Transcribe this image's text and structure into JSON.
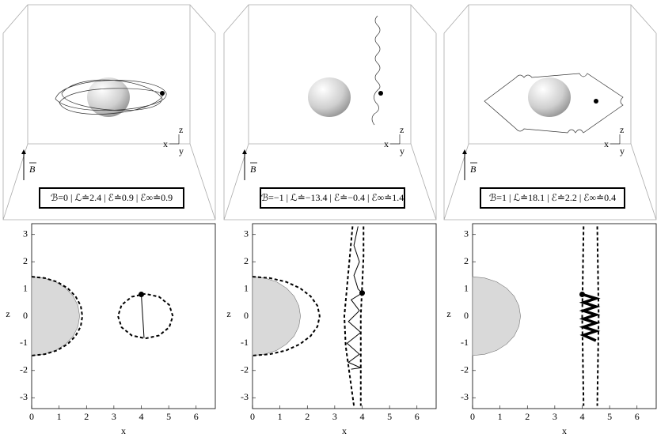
{
  "scenes": [
    {
      "axes": [
        "x",
        "y",
        "z"
      ],
      "field": "B",
      "label": "ℬ=0 | ℒ≐2.4 | ℰ≐0.9 | ℰ∞≐0.9"
    },
    {
      "axes": [
        "x",
        "y",
        "z"
      ],
      "field": "B",
      "label": "ℬ=−1 | ℒ≐−13.4 | ℰ≐−0.4 | ℰ∞≐1.4"
    },
    {
      "axes": [
        "x",
        "y",
        "z"
      ],
      "field": "B",
      "label": "ℬ=1 | ℒ≐18.1 | ℰ≐2.2 | ℰ∞≐0.4"
    }
  ],
  "chart_data": [
    {
      "type": "line",
      "xlabel": "x",
      "ylabel": "z",
      "xlim": [
        0,
        6.7
      ],
      "ylim": [
        -3.4,
        3.4
      ],
      "xticks": [
        0,
        1,
        2,
        3,
        4,
        5,
        6
      ],
      "yticks": [
        -3,
        -2,
        -1,
        0,
        1,
        2,
        3
      ],
      "series": [
        {
          "style": "filled",
          "color": "#d9d9d9",
          "x": [
            0,
            0.45,
            0.88,
            1.24,
            1.52,
            1.69,
            1.75,
            1.69,
            1.52,
            1.24,
            0.88,
            0.45,
            0
          ],
          "values": [
            1.45,
            1.4,
            1.26,
            1.03,
            0.73,
            0.38,
            0,
            -0.38,
            -0.73,
            -1.03,
            -1.26,
            -1.4,
            -1.45
          ]
        },
        {
          "style": "dashed",
          "color": "#000000",
          "x": [
            0,
            0.48,
            0.93,
            1.31,
            1.6,
            1.79,
            1.85,
            1.79,
            1.6,
            1.31,
            0.93,
            0.48,
            0
          ],
          "values": [
            1.45,
            1.4,
            1.26,
            1.03,
            0.73,
            0.38,
            0,
            -0.38,
            -0.73,
            -1.03,
            -1.26,
            -1.4,
            -1.45
          ]
        },
        {
          "style": "dashed",
          "color": "#000000",
          "x": [
            5.15,
            5.02,
            4.65,
            4.15,
            3.65,
            3.28,
            3.15,
            3.28,
            3.65,
            4.15,
            4.65,
            5.02,
            5.15
          ],
          "values": [
            0,
            0.41,
            0.71,
            0.82,
            0.71,
            0.41,
            0,
            -0.41,
            -0.71,
            -0.82,
            -0.71,
            -0.41,
            0
          ]
        },
        {
          "style": "solid",
          "color": "#000000",
          "x": [
            4.0,
            4.03,
            4.07,
            4.1
          ],
          "values": [
            0.8,
            0.3,
            -0.3,
            -0.8
          ]
        },
        {
          "style": "points",
          "color": "#000000",
          "x": [
            4.0
          ],
          "values": [
            0.8
          ]
        }
      ]
    },
    {
      "type": "line",
      "xlabel": "x",
      "ylabel": "z",
      "xlim": [
        0,
        6.7
      ],
      "ylim": [
        -3.4,
        3.4
      ],
      "xticks": [
        0,
        1,
        2,
        3,
        4,
        5,
        6
      ],
      "yticks": [
        -3,
        -2,
        -1,
        0,
        1,
        2,
        3
      ],
      "series": [
        {
          "style": "filled",
          "color": "#d9d9d9",
          "x": [
            0,
            0.45,
            0.88,
            1.24,
            1.52,
            1.69,
            1.75,
            1.69,
            1.52,
            1.24,
            0.88,
            0.45,
            0
          ],
          "values": [
            1.45,
            1.4,
            1.26,
            1.03,
            0.73,
            0.38,
            0,
            -0.38,
            -0.73,
            -1.03,
            -1.26,
            -1.4,
            -1.45
          ]
        },
        {
          "style": "dashed",
          "color": "#000000",
          "x": [
            0,
            0.63,
            1.23,
            1.73,
            2.12,
            2.37,
            2.45,
            2.37,
            2.12,
            1.73,
            1.23,
            0.63,
            0
          ],
          "values": [
            1.45,
            1.4,
            1.26,
            1.03,
            0.73,
            0.38,
            0,
            -0.38,
            -0.73,
            -1.03,
            -1.26,
            -1.4,
            -1.45
          ]
        },
        {
          "style": "dashed",
          "color": "#000000",
          "x": [
            3.65,
            3.55,
            3.45,
            3.35,
            3.4,
            3.55,
            3.7
          ],
          "values": [
            3.3,
            2.2,
            1.1,
            0,
            -1.1,
            -2.2,
            -3.3
          ]
        },
        {
          "style": "dashed",
          "color": "#000000",
          "x": [
            4.05,
            4.05,
            4.0,
            3.95,
            3.95,
            3.95,
            3.95
          ],
          "values": [
            3.3,
            2.2,
            1.1,
            0,
            -1.1,
            -2.2,
            -3.3
          ]
        },
        {
          "style": "solid",
          "color": "#000000",
          "x": [
            3.85,
            3.7,
            3.9,
            3.7,
            3.85,
            4.0,
            3.6,
            3.9,
            3.5,
            3.95,
            3.45,
            3.9,
            3.5,
            3.95,
            3.6
          ],
          "values": [
            3.3,
            2.6,
            2.0,
            1.5,
            1.0,
            0.85,
            0.6,
            0.2,
            -0.2,
            -0.6,
            -1.0,
            -1.4,
            -1.7,
            -1.9,
            -1.95
          ]
        },
        {
          "style": "points",
          "color": "#000000",
          "x": [
            4.0
          ],
          "values": [
            0.85
          ]
        }
      ]
    },
    {
      "type": "line",
      "xlabel": "x",
      "ylabel": "z",
      "xlim": [
        0,
        6.7
      ],
      "ylim": [
        -3.4,
        3.4
      ],
      "xticks": [
        0,
        1,
        2,
        3,
        4,
        5,
        6
      ],
      "yticks": [
        -3,
        -2,
        -1,
        0,
        1,
        2,
        3
      ],
      "series": [
        {
          "style": "filled",
          "color": "#d9d9d9",
          "x": [
            0,
            0.45,
            0.88,
            1.24,
            1.52,
            1.69,
            1.75,
            1.69,
            1.52,
            1.24,
            0.88,
            0.45,
            0
          ],
          "values": [
            1.45,
            1.4,
            1.26,
            1.03,
            0.73,
            0.38,
            0,
            -0.38,
            -0.73,
            -1.03,
            -1.26,
            -1.4,
            -1.45
          ]
        },
        {
          "style": "dashed",
          "color": "#000000",
          "x": [
            4.05,
            4.0,
            4.05
          ],
          "values": [
            3.3,
            0,
            -3.3
          ]
        },
        {
          "style": "dashed",
          "color": "#000000",
          "x": [
            4.55,
            4.6,
            4.55
          ],
          "values": [
            3.3,
            0,
            -3.3
          ]
        },
        {
          "style": "thick",
          "color": "#000000",
          "x": [
            4.0,
            4.5,
            4.05,
            4.5,
            4.05,
            4.5,
            4.05,
            4.5,
            4.05,
            4.5,
            4.05,
            4.5
          ],
          "values": [
            0.8,
            0.65,
            0.5,
            0.35,
            0.2,
            0.05,
            -0.1,
            -0.25,
            -0.4,
            -0.55,
            -0.7,
            -0.9
          ]
        },
        {
          "style": "points",
          "color": "#000000",
          "x": [
            4.0
          ],
          "values": [
            0.8
          ]
        }
      ]
    }
  ]
}
